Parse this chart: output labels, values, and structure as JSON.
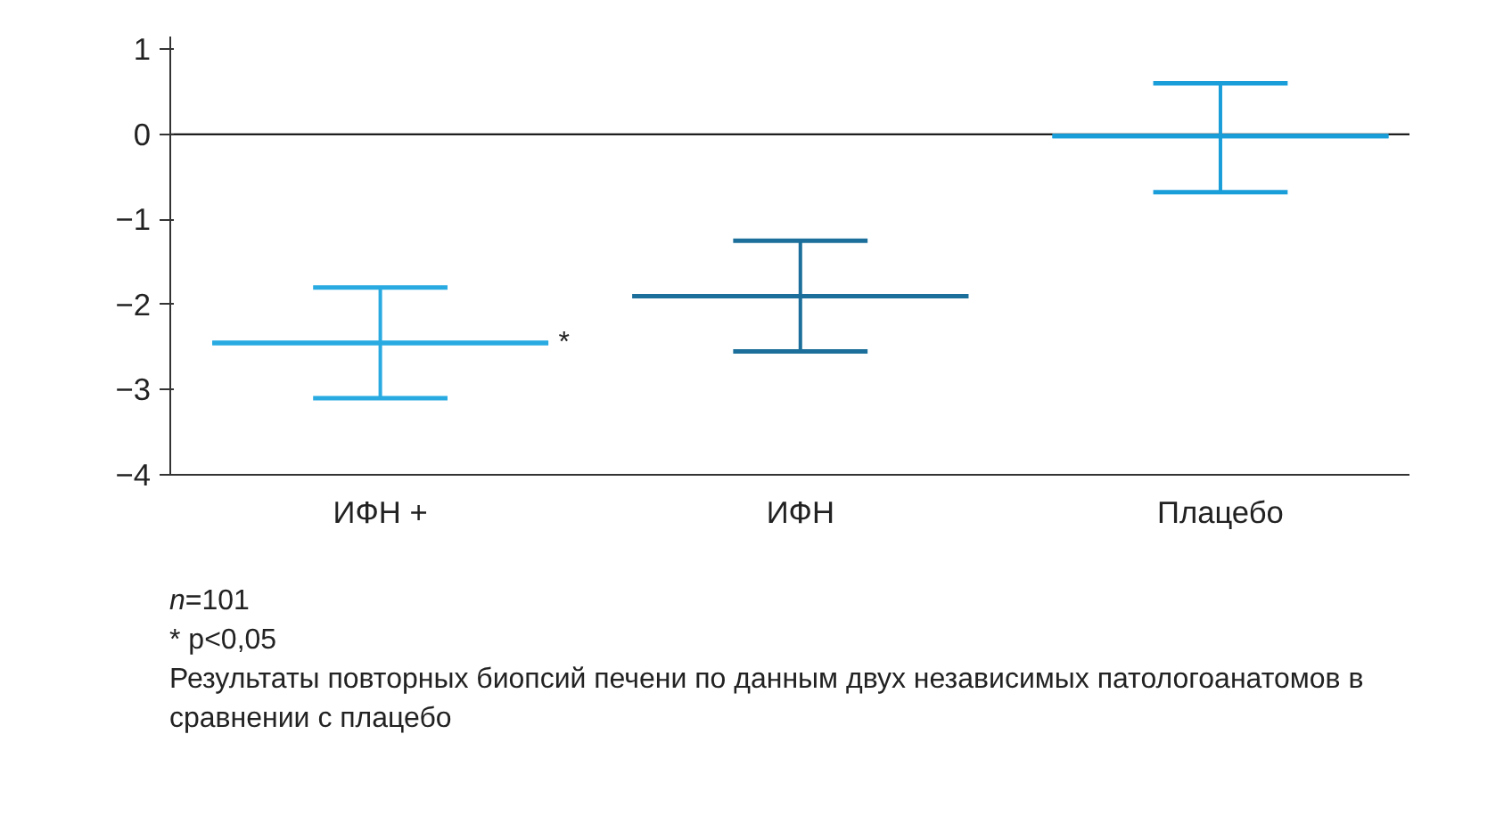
{
  "chart_data": {
    "type": "box",
    "categories": [
      "ИФН +",
      "ИФН",
      "Плацебо"
    ],
    "colors": [
      "#29abe2",
      "#1b6f9a",
      "#1a9ed9"
    ],
    "boxes": [
      {
        "low": -3.1,
        "q1": -2.45,
        "median": -2.45,
        "q3": -2.45,
        "high": -1.8
      },
      {
        "low": -2.55,
        "q1": -1.9,
        "median": -1.9,
        "q3": -1.9,
        "high": -1.25
      },
      {
        "low": -0.68,
        "q1": -0.02,
        "median": -0.02,
        "q3": -0.02,
        "high": 0.6
      }
    ],
    "ylim": [
      -4,
      1.15
    ],
    "yticks": [
      -4,
      -3,
      -2,
      -1,
      0,
      1
    ],
    "grid": false,
    "ref_lines": [
      {
        "axis": "y",
        "value": 0,
        "color": "#000000"
      }
    ],
    "annotations": [
      "*",
      "n=101",
      "* p<0,05",
      "Результаты повторных биопсий печени по данным двух независимых патологоанатомов в сравнении с плацебо"
    ]
  }
}
